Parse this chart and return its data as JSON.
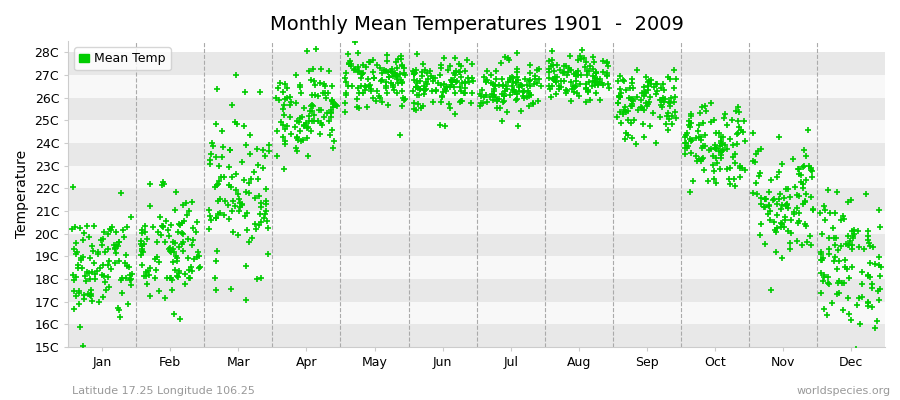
{
  "title": "Monthly Mean Temperatures 1901  -  2009",
  "ylabel": "Temperature",
  "subtitle": "Latitude 17.25 Longitude 106.25",
  "watermark": "worldspecies.org",
  "legend_label": "Mean Temp",
  "marker_color": "#00cc00",
  "bg_color": "#ffffff",
  "plot_bg_color": "#ffffff",
  "stripe_colors": [
    "#e8e8e8",
    "#f8f8f8"
  ],
  "ylim": [
    15,
    28.5
  ],
  "ytick_labels": [
    "15C",
    "16C",
    "17C",
    "18C",
    "19C",
    "20C",
    "21C",
    "22C",
    "23C",
    "24C",
    "25C",
    "26C",
    "27C",
    "28C"
  ],
  "ytick_values": [
    15,
    16,
    17,
    18,
    19,
    20,
    21,
    22,
    23,
    24,
    25,
    26,
    27,
    28
  ],
  "months": [
    "Jan",
    "Feb",
    "Mar",
    "Apr",
    "May",
    "Jun",
    "Jul",
    "Aug",
    "Sep",
    "Oct",
    "Nov",
    "Dec"
  ],
  "month_means": [
    18.5,
    19.2,
    22.0,
    25.5,
    26.8,
    26.5,
    26.5,
    26.8,
    25.8,
    24.0,
    21.5,
    18.8
  ],
  "month_stds": [
    1.3,
    1.4,
    1.8,
    1.0,
    0.7,
    0.6,
    0.6,
    0.5,
    0.8,
    1.0,
    1.4,
    1.5
  ],
  "n_years": 109,
  "seed": 42,
  "title_fontsize": 14,
  "axis_fontsize": 10,
  "tick_fontsize": 9,
  "legend_fontsize": 9,
  "subtitle_fontsize": 8,
  "watermark_fontsize": 8,
  "marker_size": 18,
  "dashed_line_color": "#aaaaaa",
  "spine_color": "#cccccc"
}
